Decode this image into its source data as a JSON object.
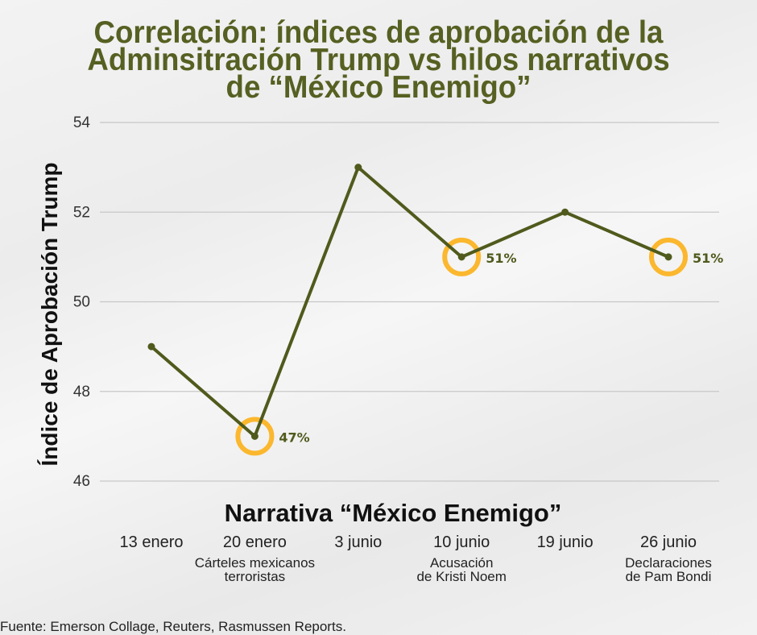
{
  "title_lines": [
    "Correlación: índices de aprobación de la",
    "Adminsitración Trump vs hilos narrativos",
    "de “México Enemigo”"
  ],
  "source": "Fuente: Emerson Collage, Reuters, Rasmussen Reports.",
  "colors": {
    "title": "#556022",
    "line": "#4f5a1c",
    "highlight": "#fbb72e",
    "grid": "#c8c8c8"
  },
  "chart_data": {
    "type": "line",
    "title": "Correlación: índices de aprobación de la Adminsitración Trump vs hilos narrativos de “México Enemigo”",
    "xlabel": "Narrativa “México Enemigo”",
    "ylabel": "Índice de Aprobación Trump",
    "ylim": [
      46,
      54
    ],
    "yticks": [
      "46",
      "48",
      "50",
      "52",
      "54"
    ],
    "grid": true,
    "categories": [
      "13 enero",
      "20 enero",
      "3 junio",
      "10 junio",
      "19 junio",
      "26 junio"
    ],
    "category_notes": [
      "",
      "Cárteles mexicanos\nterroristas",
      "",
      "Acusación\nde Kristi Noem",
      "",
      "Declaraciones\nde Pam Bondi"
    ],
    "series": [
      {
        "name": "Índice de Aprobación Trump",
        "values": [
          49,
          47,
          53,
          51,
          52,
          51
        ]
      }
    ],
    "highlights": [
      {
        "index": 1,
        "label": "47%"
      },
      {
        "index": 3,
        "label": "51%"
      },
      {
        "index": 5,
        "label": "51%"
      }
    ]
  }
}
